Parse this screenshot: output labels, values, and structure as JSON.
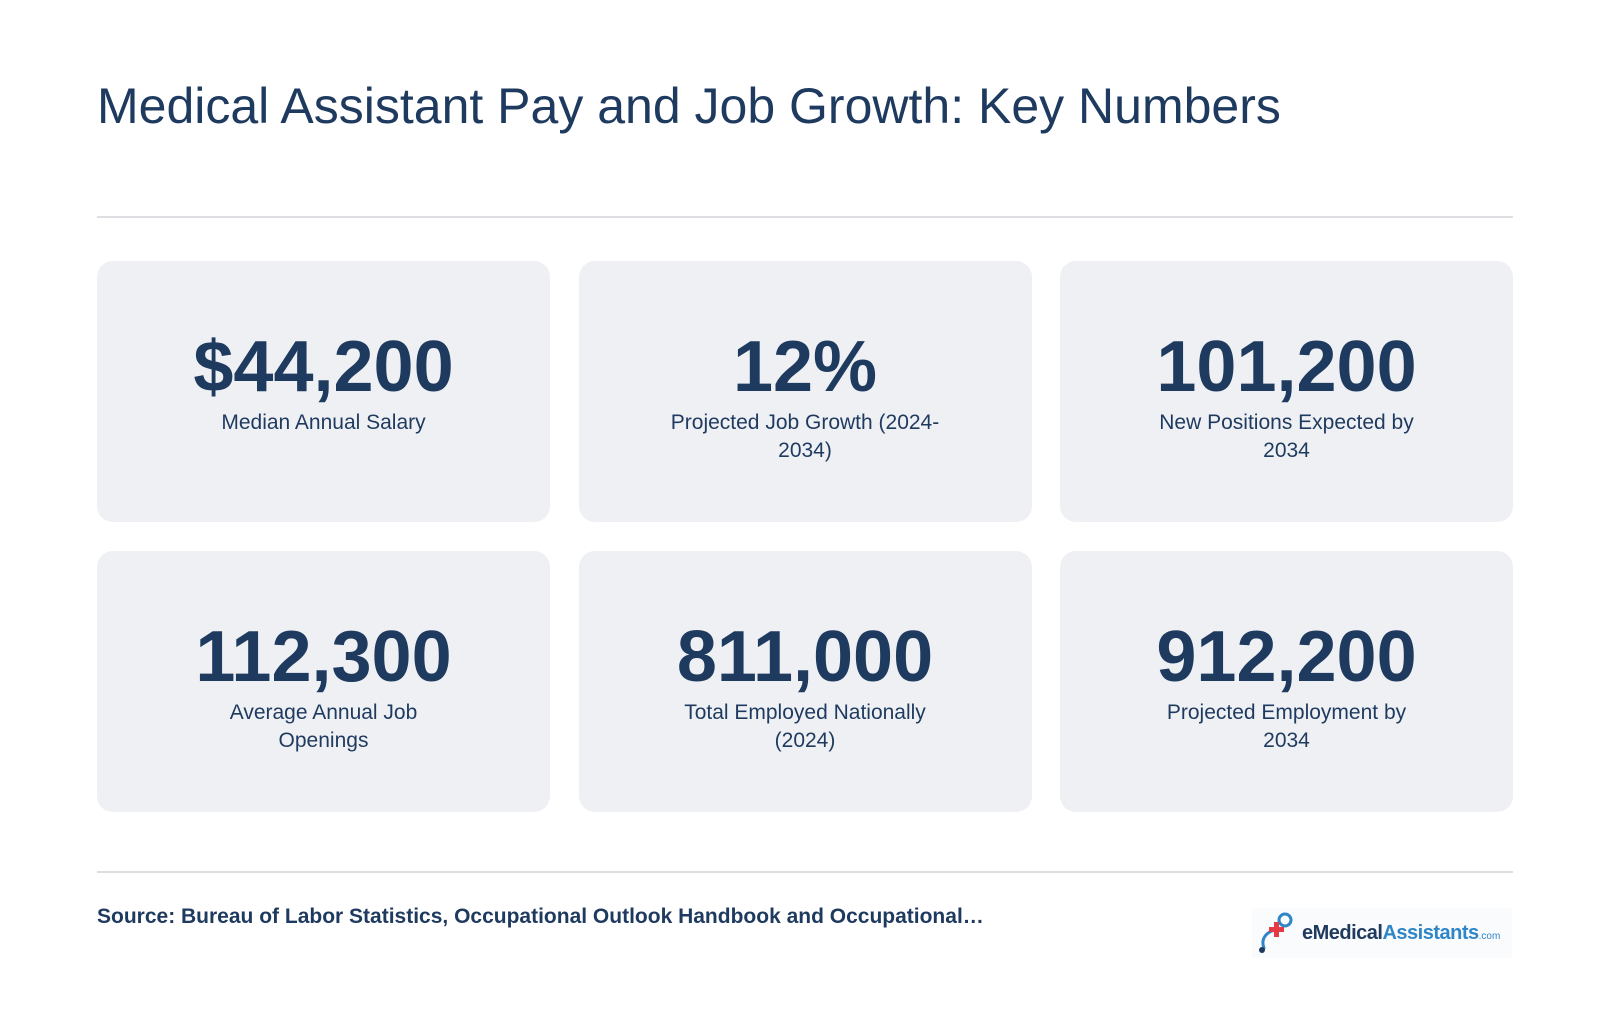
{
  "title": "Medical Assistant Pay and Job Growth: Key Numbers",
  "cards": [
    {
      "value": "$44,200",
      "label": "Median Annual Salary"
    },
    {
      "value": "12%",
      "label": "Projected Job Growth (2024-2034)"
    },
    {
      "value": "101,200",
      "label": "New Positions Expected by 2034"
    },
    {
      "value": "112,300",
      "label": "Average Annual Job Openings"
    },
    {
      "value": "811,000",
      "label": "Total Employed Nationally (2024)"
    },
    {
      "value": "912,200",
      "label": "Projected Employment by 2034"
    }
  ],
  "source": "Source: Bureau of Labor Statistics, Occupational Outlook Handbook and Occupational…",
  "brand": {
    "prefix": "e",
    "medical": "Medical",
    "assistants": "Assistants",
    "suffix": ".com",
    "colors": {
      "navy": "#1f3a5f",
      "blue": "#2e86c9",
      "red": "#e63946"
    }
  },
  "colors": {
    "text": "#1f3a5f",
    "card_background": "#eef0f4",
    "divider": "#dcdee2"
  }
}
